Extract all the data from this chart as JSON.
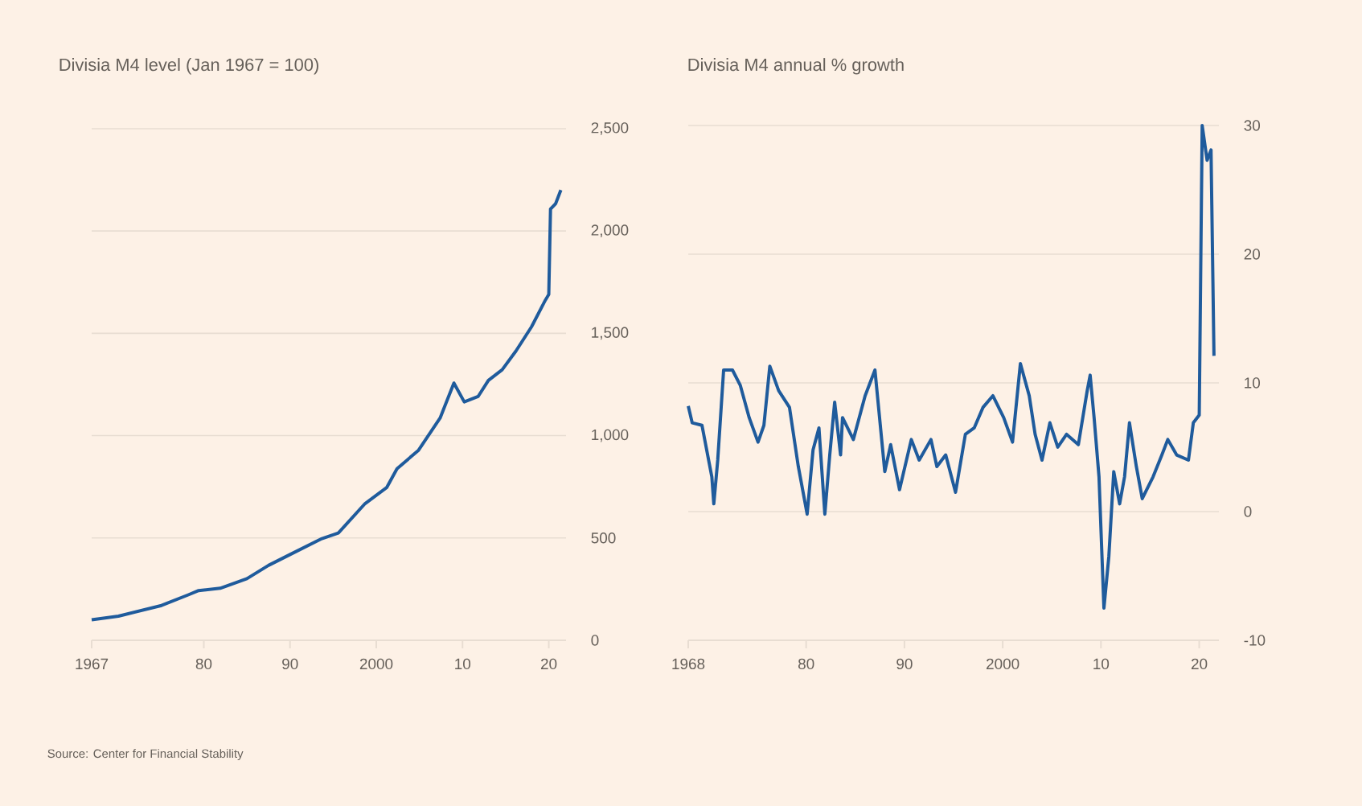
{
  "chart_data": [
    {
      "type": "line",
      "title": "Divisia M4 level (Jan 1967 = 100)",
      "color": "#1f5b9c",
      "grid": "y",
      "xlim": [
        1967,
        2022
      ],
      "xticks": [
        1967,
        {
          "value": 1980,
          "label": "80"
        },
        {
          "value": 1990,
          "label": "90"
        },
        2000,
        {
          "value": 2010,
          "label": "10"
        },
        {
          "value": 2020,
          "label": "20"
        }
      ],
      "ylim": [
        0,
        2500
      ],
      "yticks": [
        0,
        500,
        {
          "value": 1000,
          "label": "1,000"
        },
        {
          "value": 1500,
          "label": "1,500"
        },
        {
          "value": 2000,
          "label": "2,000"
        },
        {
          "value": 2500,
          "label": "2,500"
        }
      ],
      "x": [
        1967.0,
        1970.1,
        1975.1,
        1978.2,
        1979.4,
        1981.9,
        1985.0,
        1987.5,
        1990.0,
        1993.7,
        1995.6,
        1998.7,
        2001.2,
        2002.4,
        2004.9,
        2007.4,
        2009.0,
        2010.2,
        2011.8,
        2013.0,
        2014.6,
        2016.2,
        2018.0,
        2019.6,
        2020.0,
        2020.2,
        2020.8,
        2021.4
      ],
      "values": [
        100,
        118,
        170,
        222,
        243,
        254,
        301,
        366,
        419,
        497,
        524,
        668,
        746,
        838,
        929,
        1086,
        1257,
        1165,
        1191,
        1270,
        1322,
        1414,
        1532,
        1662,
        1690,
        2107,
        2134,
        2200
      ],
      "annotations": [
        "Source: Center for Financial Stability"
      ]
    },
    {
      "type": "line",
      "title": "Divisia M4 annual % growth",
      "color": "#1f5b9c",
      "grid": "y",
      "xlim": [
        1968,
        2022
      ],
      "xticks": [
        1968,
        {
          "value": 1980,
          "label": "80"
        },
        {
          "value": 1990,
          "label": "90"
        },
        2000,
        {
          "value": 2010,
          "label": "10"
        },
        {
          "value": 2020,
          "label": "20"
        }
      ],
      "ylim": [
        -10,
        30
      ],
      "yticks": [
        -10,
        0,
        10,
        20,
        30
      ],
      "x": [
        1968.0,
        1968.4,
        1969.4,
        1970.4,
        1970.6,
        1971.0,
        1971.6,
        1972.5,
        1973.3,
        1974.2,
        1975.1,
        1975.7,
        1976.3,
        1977.2,
        1978.3,
        1979.2,
        1980.1,
        1980.7,
        1981.3,
        1981.9,
        1982.4,
        1982.9,
        1983.5,
        1983.7,
        1984.8,
        1986.0,
        1987.0,
        1988.0,
        1988.6,
        1989.5,
        1990.7,
        1991.5,
        1992.7,
        1993.3,
        1994.2,
        1995.2,
        1996.2,
        1997.1,
        1998.0,
        1999.0,
        2000.1,
        2001.0,
        2001.8,
        2002.7,
        2003.3,
        2004.0,
        2004.8,
        2005.6,
        2006.5,
        2007.7,
        2008.6,
        2008.9,
        2009.3,
        2009.8,
        2010.3,
        2010.8,
        2011.3,
        2011.9,
        2012.4,
        2012.9,
        2013.6,
        2014.2,
        2015.3,
        2016.2,
        2016.8,
        2017.7,
        2018.9,
        2019.4,
        2020.0,
        2020.3,
        2020.8,
        2021.2,
        2021.5
      ],
      "values": [
        8.2,
        6.9,
        6.7,
        2.7,
        0.6,
        4.0,
        11.0,
        11.0,
        9.8,
        7.3,
        5.4,
        6.7,
        11.3,
        9.4,
        8.1,
        3.5,
        -0.2,
        4.8,
        6.5,
        -0.2,
        4.4,
        8.5,
        4.4,
        7.3,
        5.6,
        9.0,
        11.0,
        3.1,
        5.2,
        1.7,
        5.6,
        4.0,
        5.6,
        3.5,
        4.4,
        1.5,
        6.0,
        6.5,
        8.1,
        9.0,
        7.3,
        5.4,
        11.5,
        9.0,
        6.0,
        4.0,
        6.9,
        5.0,
        6.0,
        5.2,
        9.4,
        10.6,
        7.3,
        2.7,
        -7.5,
        -3.5,
        3.1,
        0.6,
        2.7,
        6.9,
        3.5,
        1.0,
        2.7,
        4.4,
        5.6,
        4.4,
        4.0,
        6.9,
        7.5,
        30.0,
        27.3,
        28.1,
        12.1
      ]
    }
  ]
}
